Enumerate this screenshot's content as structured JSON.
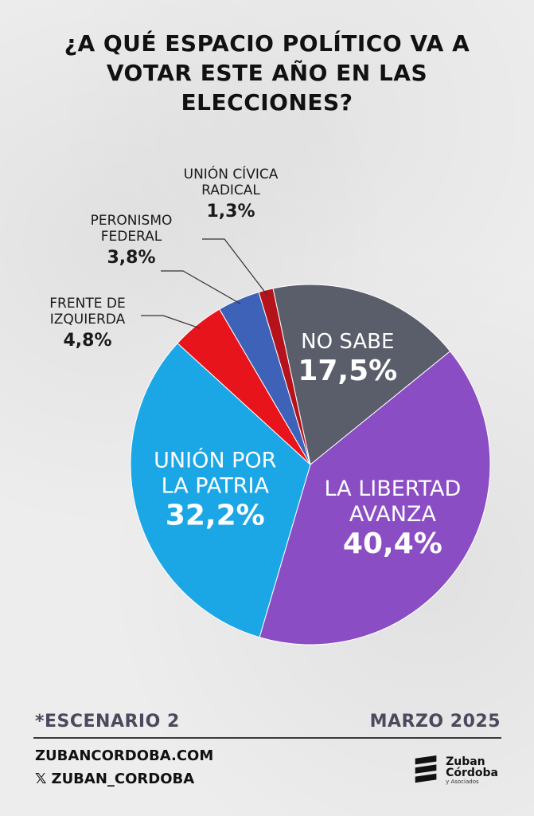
{
  "title": "¿A QUÉ ESPACIO POLÍTICO VA A VOTAR ESTE AÑO EN LAS ELECCIONES?",
  "chart_data": {
    "type": "pie",
    "title": "¿A QUÉ ESPACIO POLÍTICO VA A VOTAR ESTE AÑO EN LAS ELECCIONES?",
    "slices": [
      {
        "name_lines": [
          "NO SABE"
        ],
        "label": "17,5%",
        "value": 17.5,
        "color": "#5a5e6b",
        "placement": "inside"
      },
      {
        "name_lines": [
          "LA LIBERTAD",
          "AVANZA"
        ],
        "label": "40,4%",
        "value": 40.4,
        "color": "#8a4dc4",
        "placement": "inside"
      },
      {
        "name_lines": [
          "UNIÓN POR",
          "LA PATRIA"
        ],
        "label": "32,2%",
        "value": 32.2,
        "color": "#1ba7e6",
        "placement": "inside"
      },
      {
        "name_lines": [
          "FRENTE DE",
          "IZQUIERDA"
        ],
        "label": "4,8%",
        "value": 4.8,
        "color": "#e8141c",
        "placement": "outside"
      },
      {
        "name_lines": [
          "PERONISMO",
          "FEDERAL"
        ],
        "label": "3,8%",
        "value": 3.8,
        "color": "#3d62b8",
        "placement": "outside"
      },
      {
        "name_lines": [
          "UNIÓN CÍVICA",
          "RADICAL"
        ],
        "label": "1,3%",
        "value": 1.3,
        "color": "#b5121b",
        "placement": "outside"
      }
    ]
  },
  "footer": {
    "scenario": "*ESCENARIO 2",
    "date": "MARZO 2025",
    "website": "ZUBANCORDOBA.COM",
    "social_icon": "x-icon",
    "social_handle": "ZUBAN_CORDOBA",
    "logo_line1": "Zuban",
    "logo_line2": "Córdoba",
    "logo_line3": "y Asociados"
  }
}
